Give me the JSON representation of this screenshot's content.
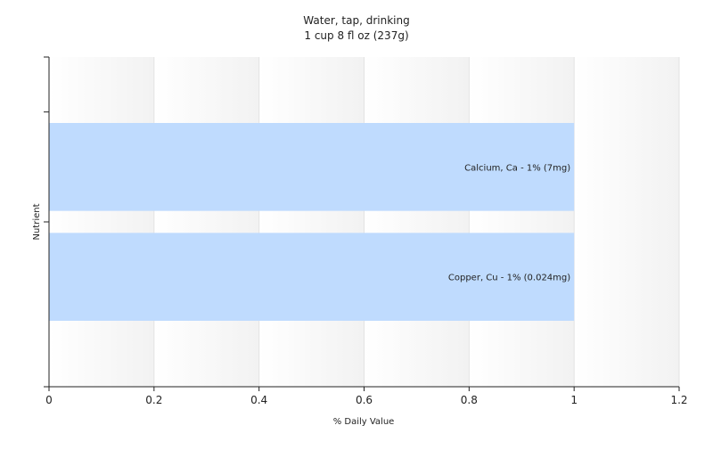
{
  "chart_data": {
    "type": "bar",
    "orientation": "horizontal",
    "title": "Water, tap, drinking",
    "subtitle": "1 cup 8 fl oz (237g)",
    "xlabel": "% Daily Value",
    "ylabel": "Nutrient",
    "xlim": [
      0,
      1.2
    ],
    "xticks": [
      "0",
      "0.2",
      "0.4",
      "0.6",
      "0.8",
      "1",
      "1.2"
    ],
    "grid": true,
    "bar_color": "#bfdbfe",
    "bars": [
      {
        "label": "Calcium, Ca - 1% (7mg)",
        "value": 1
      },
      {
        "label": "Copper, Cu - 1% (0.024mg)",
        "value": 1
      }
    ]
  }
}
